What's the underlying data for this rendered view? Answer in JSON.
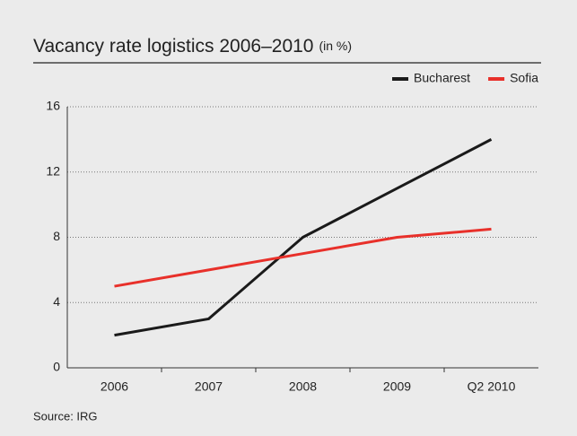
{
  "chart_data": {
    "type": "line",
    "title": "Vacancy rate logistics 2006–2010",
    "subtitle": "(in %)",
    "categories": [
      "2006",
      "2007",
      "2008",
      "2009",
      "Q2 2010"
    ],
    "series": [
      {
        "name": "Bucharest",
        "color": "#1a1a1a",
        "values": [
          2,
          3,
          8,
          11,
          14
        ]
      },
      {
        "name": "Sofia",
        "color": "#e8302a",
        "values": [
          5,
          6,
          7,
          8,
          8.5
        ]
      }
    ],
    "ylim": [
      0,
      16
    ],
    "yticks": [
      0,
      4,
      8,
      12,
      16
    ],
    "grid": true,
    "legend": "top-right",
    "source": "Source: IRG"
  }
}
